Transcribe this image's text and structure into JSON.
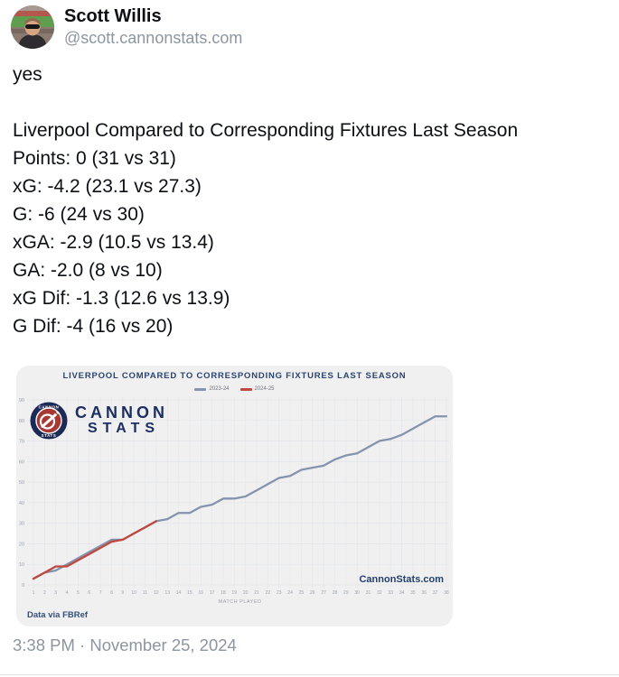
{
  "post": {
    "author": {
      "name": "Scott Willis",
      "handle": "@scott.cannonstats.com"
    },
    "body_lines": [
      "yes",
      "",
      "Liverpool Compared to Corresponding Fixtures Last Season",
      "Points: 0 (31 vs 31)",
      "xG: -4.2 (23.1 vs 27.3)",
      "G: -6 (24 vs 30)",
      "xGA: -2.9 (10.5 vs 13.4)",
      "GA: -2.0 (8 vs 10)",
      "xG Dif: -1.3 (12.6 vs 13.9)",
      "G Dif: -4 (16 vs 20)"
    ],
    "timestamp": "3:38 PM · November 25, 2024"
  },
  "embed": {
    "watermark": "CannonStats.com",
    "credit": "Data via FBRef",
    "logo": {
      "wordmark_line1": "CANNON",
      "wordmark_line2": "STATS",
      "badge_top": "CANNON",
      "badge_bottom": "STATS"
    },
    "card_bg": "#f0f0f0",
    "navy": "#24406e"
  },
  "chart_data": {
    "type": "line",
    "title": "LIVERPOOL COMPARED TO CORRESPONDING FIXTURES LAST SEASON",
    "xlabel": "MATCH PLAYED",
    "ylabel": "",
    "xlim": [
      1,
      38
    ],
    "ylim": [
      0,
      90
    ],
    "y_tick_step": 10,
    "grid": true,
    "legend_position": "top-center",
    "x": [
      1,
      2,
      3,
      4,
      5,
      6,
      7,
      8,
      9,
      10,
      11,
      12,
      13,
      14,
      15,
      16,
      17,
      18,
      19,
      20,
      21,
      22,
      23,
      24,
      25,
      26,
      27,
      28,
      29,
      30,
      31,
      32,
      33,
      34,
      35,
      36,
      37,
      38
    ],
    "series": [
      {
        "name": "2023-24",
        "color": "#8593ac",
        "values": [
          3,
          6,
          7,
          10,
          13,
          16,
          19,
          22,
          22,
          25,
          28,
          31,
          32,
          35,
          35,
          38,
          39,
          42,
          42,
          43,
          46,
          49,
          52,
          53,
          56,
          57,
          58,
          61,
          63,
          64,
          67,
          70,
          71,
          73,
          76,
          79,
          82,
          82
        ]
      },
      {
        "name": "2024-25",
        "color": "#bf4840",
        "values": [
          3,
          6,
          9,
          9,
          12,
          15,
          18,
          21,
          22,
          25,
          28,
          31
        ]
      }
    ],
    "tick_color": "#9aa3ae",
    "grid_color": "#e4e5e9"
  }
}
